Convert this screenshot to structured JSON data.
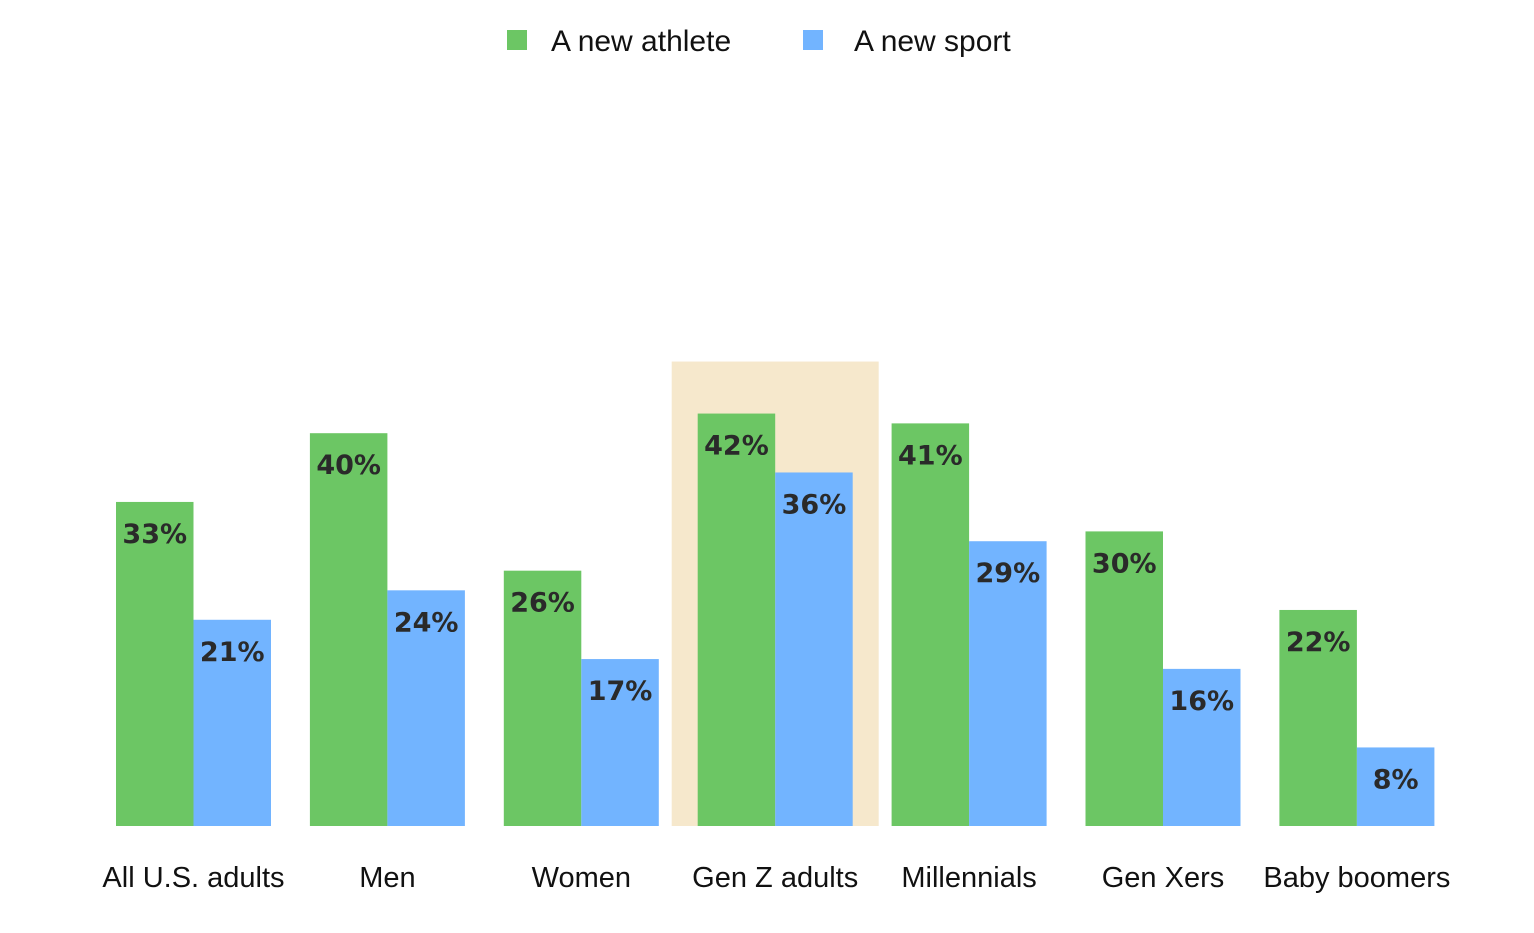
{
  "chart_data": {
    "type": "bar",
    "categories": [
      "All U.S. adults",
      "Men",
      "Women",
      "Gen Z adults",
      "Millennials",
      "Gen Xers",
      "Baby boomers"
    ],
    "series": [
      {
        "name": "A new athlete",
        "color": "#6cc664",
        "values": [
          33,
          40,
          26,
          42,
          41,
          30,
          22
        ],
        "labels": [
          "33%",
          "40%",
          "26%",
          "42%",
          "41%",
          "30%",
          "22%"
        ]
      },
      {
        "name": "A new sport",
        "color": "#72b4ff",
        "values": [
          21,
          24,
          17,
          36,
          29,
          16,
          8
        ],
        "labels": [
          "21%",
          "24%",
          "17%",
          "36%",
          "29%",
          "16%",
          "8%"
        ]
      }
    ],
    "highlighted_category": "Gen Z adults",
    "highlight_color": "#f6e8cc",
    "legend_position": "top-center",
    "grid": false,
    "ylim": [
      0,
      100
    ]
  }
}
